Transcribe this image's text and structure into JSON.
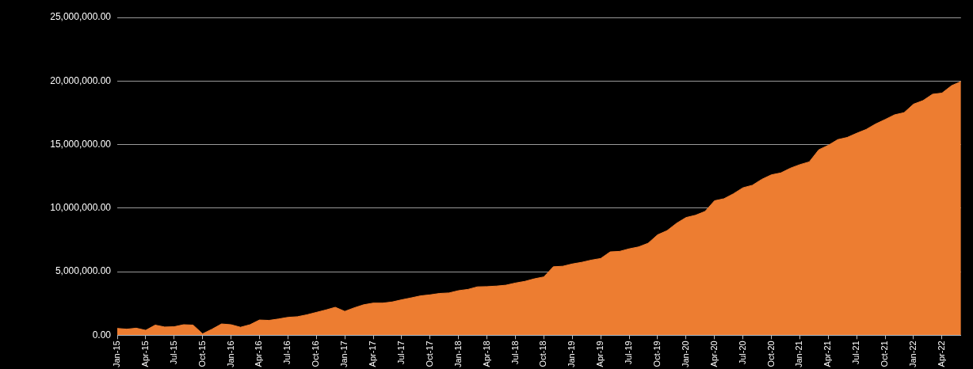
{
  "chart_data": {
    "type": "area",
    "categories": [
      "Jan-15",
      null,
      null,
      "Apr-15",
      null,
      null,
      "Jul-15",
      null,
      null,
      "Oct-15",
      null,
      null,
      "Jan-16",
      null,
      null,
      "Apr-16",
      null,
      null,
      "Jul-16",
      null,
      null,
      "Oct-16",
      null,
      null,
      "Jan-17",
      null,
      null,
      "Apr-17",
      null,
      null,
      "Jul-17",
      null,
      null,
      "Oct-17",
      null,
      null,
      "Jan-18",
      null,
      null,
      "Apr-18",
      null,
      null,
      "Jul-18",
      null,
      null,
      "Oct-18",
      null,
      null,
      "Jan-19",
      null,
      null,
      "Apr-19",
      null,
      null,
      "Jul-19",
      null,
      null,
      "Oct-19",
      null,
      null,
      "Jan-20",
      null,
      null,
      "Apr-20",
      null,
      null,
      "Jul-20",
      null,
      null,
      "Oct-20",
      null,
      null,
      "Jan-21",
      null,
      null,
      "Apr-21",
      null,
      null,
      "Jul-21",
      null,
      null,
      "Oct-21",
      null,
      null,
      "Jan-22",
      null,
      null,
      "Apr-22",
      null,
      null
    ],
    "values": [
      540000,
      480000,
      560000,
      390000,
      800000,
      650000,
      670000,
      830000,
      800000,
      110000,
      480000,
      890000,
      830000,
      630000,
      830000,
      1200000,
      1170000,
      1280000,
      1410000,
      1460000,
      1610000,
      1800000,
      1990000,
      2200000,
      1880000,
      2160000,
      2400000,
      2530000,
      2530000,
      2620000,
      2790000,
      2940000,
      3100000,
      3180000,
      3290000,
      3330000,
      3510000,
      3610000,
      3810000,
      3830000,
      3870000,
      3940000,
      4110000,
      4240000,
      4440000,
      4590000,
      5390000,
      5430000,
      5610000,
      5740000,
      5910000,
      6040000,
      6560000,
      6600000,
      6800000,
      6950000,
      7240000,
      7900000,
      8230000,
      8810000,
      9260000,
      9440000,
      9740000,
      10580000,
      10740000,
      11130000,
      11600000,
      11800000,
      12270000,
      12620000,
      12770000,
      13140000,
      13420000,
      13640000,
      14590000,
      14940000,
      15390000,
      15560000,
      15890000,
      16190000,
      16620000,
      16970000,
      17340000,
      17510000,
      18180000,
      18460000,
      18960000,
      19050000,
      19630000,
      19960000
    ],
    "color": "#ed7d31",
    "ylim": [
      0,
      25000000
    ],
    "yticks": [
      {
        "value": 0,
        "label": "0.00"
      },
      {
        "value": 5000000,
        "label": "5,000,000.00"
      },
      {
        "value": 10000000,
        "label": "10,000,000.00"
      },
      {
        "value": 15000000,
        "label": "15,000,000.00"
      },
      {
        "value": 20000000,
        "label": "20,000,000.00"
      },
      {
        "value": 25000000,
        "label": "25,000,000.00"
      }
    ],
    "grid": "y"
  }
}
